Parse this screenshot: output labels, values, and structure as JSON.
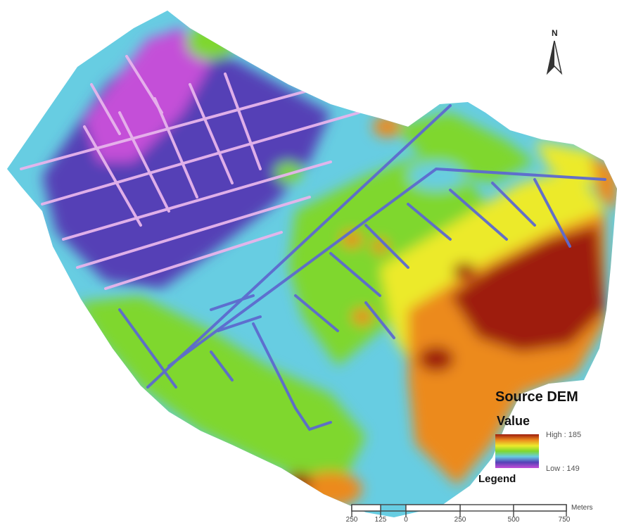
{
  "map": {
    "north_label": "N",
    "colors": {
      "very_low": "#c44fd8",
      "low": "#5540b6",
      "low_mid": "#67cde2",
      "mid": "#7fd72d",
      "mid_high": "#ecea2c",
      "high": "#ec8a1e",
      "very_high": "#9e1c0c",
      "channels_blue": "#5d6acf",
      "channels_pink": "#e7b5ec"
    }
  },
  "legend": {
    "title": "Source DEM",
    "value_heading": "Value",
    "high_label": "High : 185",
    "low_label": "Low : 149",
    "caption": "Legend",
    "ramp_colors": [
      "#9e1c0c",
      "#ec8a1e",
      "#ecea2c",
      "#7fd72d",
      "#67cde2",
      "#5540b6",
      "#c44fd8"
    ]
  },
  "scale_bar": {
    "ticks": [
      "250",
      "125",
      "0",
      "250",
      "500",
      "750"
    ],
    "unit": "Meters"
  }
}
